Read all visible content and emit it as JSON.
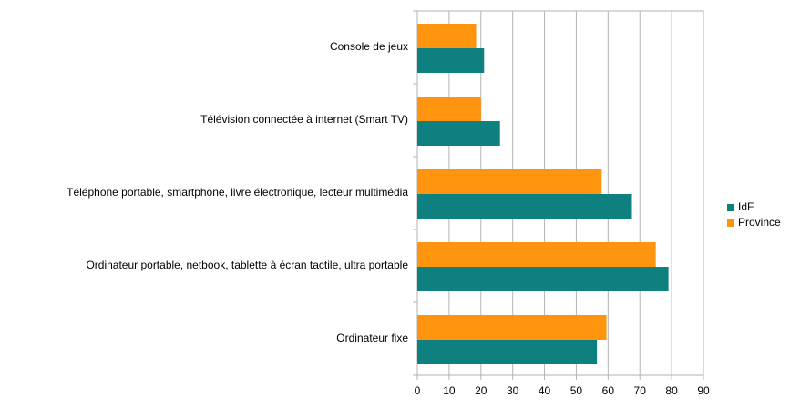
{
  "chart_data": {
    "type": "hbar",
    "categories": [
      "Console de jeux",
      "Télévision connectée à internet (Smart TV)",
      "Téléphone portable, smartphone, livre électronique, lecteur multimédia",
      "Ordinateur portable, netbook, tablette à écran tactile, ultra portable",
      "Ordinateur fixe"
    ],
    "series": [
      {
        "name": "IdF",
        "color": "#0e8080",
        "values": [
          21,
          26,
          67.5,
          79,
          56.5
        ]
      },
      {
        "name": "Province",
        "color": "#ff950e",
        "values": [
          18.5,
          20,
          58,
          75,
          59.5
        ]
      }
    ],
    "xlim": [
      0,
      90
    ],
    "xticks": [
      0,
      10,
      20,
      30,
      40,
      50,
      60,
      70,
      80,
      90
    ],
    "grid": true,
    "legend": "right"
  }
}
